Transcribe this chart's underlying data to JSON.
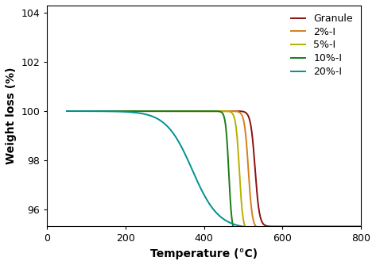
{
  "title": "",
  "xlabel": "Temperature (°C)",
  "ylabel": "Weight loss (%)",
  "xlim": [
    0,
    800
  ],
  "ylim": [
    95.3,
    104.3
  ],
  "yticks": [
    96,
    98,
    100,
    102,
    104
  ],
  "xticks": [
    0,
    200,
    400,
    600,
    800
  ],
  "series": [
    {
      "label": "Granule",
      "color": "#8B1010",
      "T_mid": 530,
      "slope": 0.18,
      "drop": 4.7,
      "onset_slope": 0.006,
      "onset_mid": 200
    },
    {
      "label": "2%-I",
      "color": "#D4801A",
      "T_mid": 513,
      "slope": 0.2,
      "drop": 4.8,
      "onset_slope": 0.007,
      "onset_mid": 200
    },
    {
      "label": "5%-I",
      "color": "#B8B000",
      "T_mid": 490,
      "slope": 0.22,
      "drop": 4.9,
      "onset_slope": 0.008,
      "onset_mid": 200
    },
    {
      "label": "10%-I",
      "color": "#1A7A1A",
      "T_mid": 463,
      "slope": 0.25,
      "drop": 5.0,
      "onset_slope": 0.009,
      "onset_mid": 200
    },
    {
      "label": "20%-I",
      "color": "#009090",
      "T_mid": 370,
      "slope": 0.03,
      "drop": 4.8,
      "onset_slope": 0.0,
      "onset_mid": 0
    }
  ],
  "legend_fontsize": 9,
  "axis_label_fontsize": 10,
  "tick_fontsize": 9,
  "label_color": "#000000",
  "background_color": "#ffffff"
}
